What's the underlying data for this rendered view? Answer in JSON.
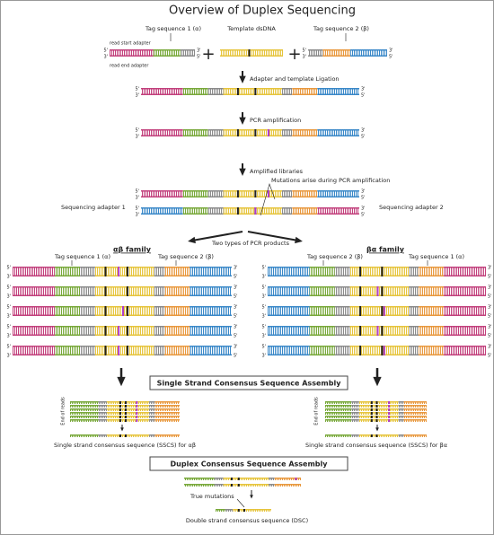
{
  "title": "Overview of Duplex Sequencing",
  "prime": {
    "five": "5'",
    "three": "3'"
  },
  "plus": "+",
  "inputs": {
    "tag1": "Tag sequence 1 (α)",
    "template": "Template dsDNA",
    "tag2": "Tag sequence 2 (β)",
    "read_start": "read start adapter",
    "read_end": "read end adapter"
  },
  "steps": {
    "ligation": "Adapter and template Ligation",
    "pcr": "PCR amplification",
    "amplified": "Amplified libraries",
    "mutations": "Mutations arise during PCR amplification",
    "adapter1": "Sequencing adapter 1",
    "adapter2": "Sequencing adapter 2",
    "two_types": "Two types of PCR products"
  },
  "families": {
    "ab": {
      "name": "αβ family",
      "tag_left": "Tag sequence 1 (α)",
      "tag_right": "Tag sequence 2 (β)"
    },
    "ba": {
      "name": "βα family",
      "tag_left": "Tag sequence 2 (β)",
      "tag_right": "Tag sequence 1 (α)"
    }
  },
  "sscs": {
    "box": "Single Strand Consensus Sequence Assembly",
    "end_of_reads": "End of reads",
    "ab": "Single strand consensus sequence (SSCS) for αβ",
    "ba": "Single strand consensus sequence (SSCS) for βα"
  },
  "dcs": {
    "box": "Duplex  Consensus Sequence Assembly",
    "true_mutations": "True mutations",
    "label": "Double strand consensus sequence (DSC)"
  }
}
